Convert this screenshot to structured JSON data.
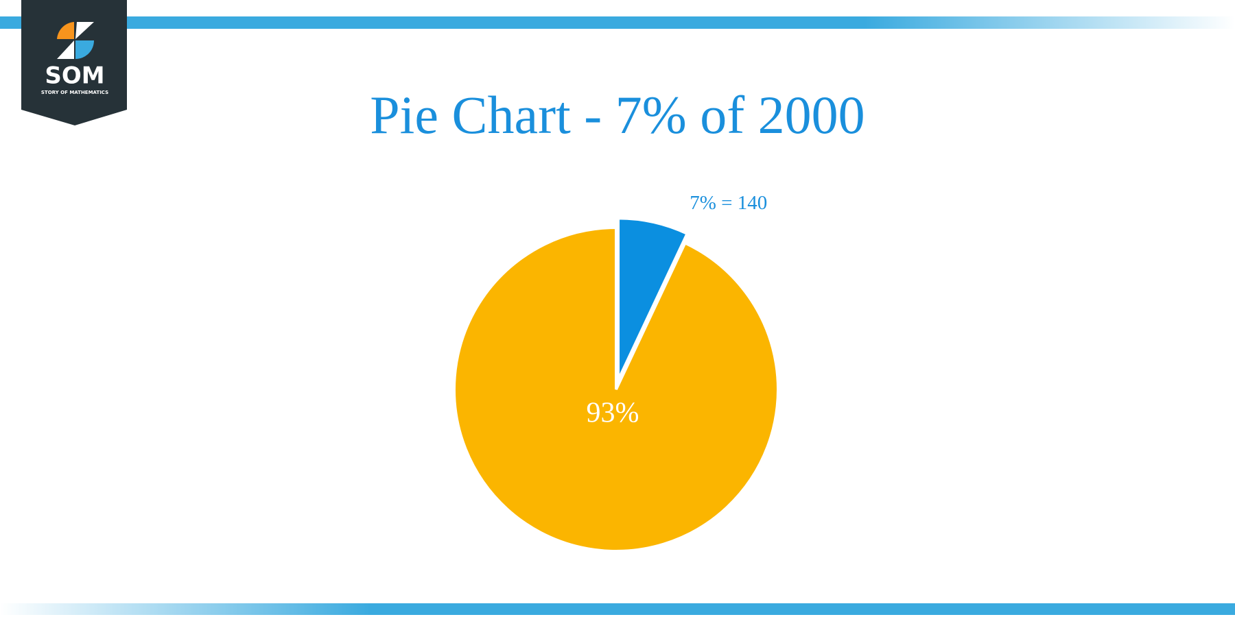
{
  "logo": {
    "text": "SOM",
    "subtitle": "STORY OF MATHEMATICS"
  },
  "chart_data": {
    "type": "pie",
    "title": "Pie Chart - 7% of 2000",
    "categories": [
      null,
      null
    ],
    "values": [
      7,
      93
    ],
    "value_labels": [
      "7% = 140",
      "93%"
    ],
    "colors": [
      "#0b8fe0",
      "#fbb500"
    ]
  }
}
